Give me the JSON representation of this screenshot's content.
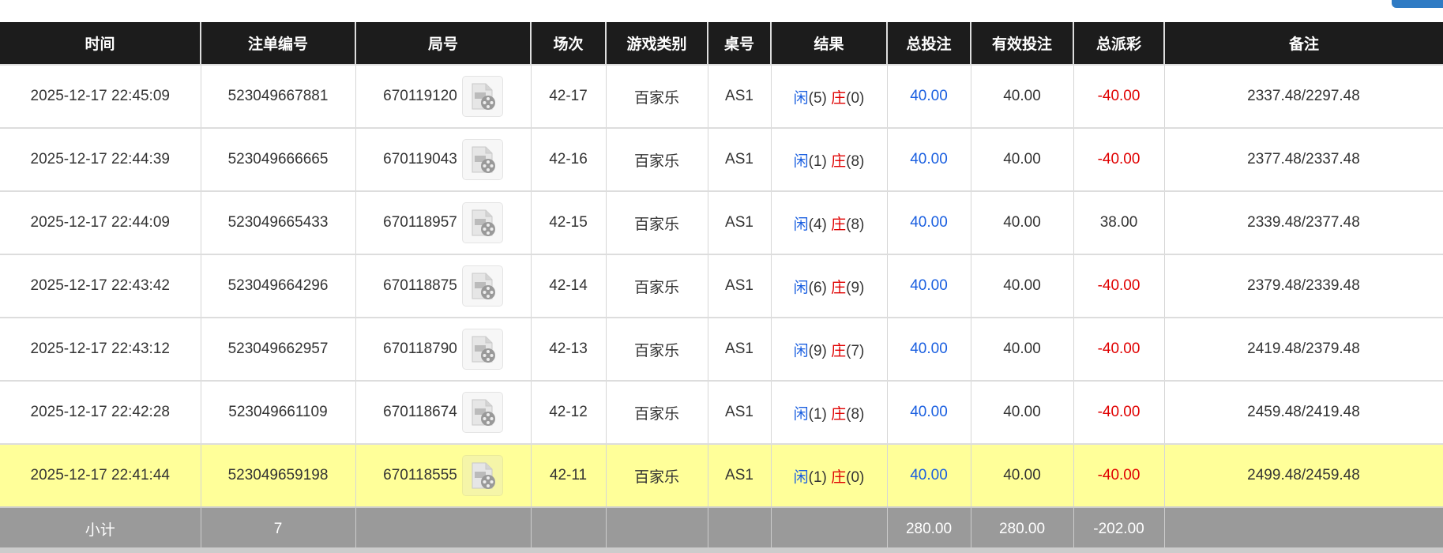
{
  "headers": [
    "时间",
    "注单编号",
    "局号",
    "场次",
    "游戏类别",
    "桌号",
    "结果",
    "总投注",
    "有效投注",
    "总派彩",
    "备注"
  ],
  "colors": {
    "header_bg": "#1c1c1c",
    "highlight_row": "#ffff99",
    "subtotal_bg": "#9a9a9a",
    "blue": "#1a5fe0",
    "red": "#e00000"
  },
  "rows": [
    {
      "time": "2025-12-17 22:45:09",
      "bet_id": "523049667881",
      "round": "670119120",
      "session": "42-17",
      "game": "百家乐",
      "table": "AS1",
      "player_label": "闲",
      "player": "(5)",
      "banker_label": "庄",
      "banker": "(0)",
      "total": "40.00",
      "valid": "40.00",
      "payout": "-40.00",
      "payout_neg": true,
      "note": "2337.48/2297.48"
    },
    {
      "time": "2025-12-17 22:44:39",
      "bet_id": "523049666665",
      "round": "670119043",
      "session": "42-16",
      "game": "百家乐",
      "table": "AS1",
      "player_label": "闲",
      "player": "(1)",
      "banker_label": "庄",
      "banker": "(8)",
      "total": "40.00",
      "valid": "40.00",
      "payout": "-40.00",
      "payout_neg": true,
      "note": "2377.48/2337.48"
    },
    {
      "time": "2025-12-17 22:44:09",
      "bet_id": "523049665433",
      "round": "670118957",
      "session": "42-15",
      "game": "百家乐",
      "table": "AS1",
      "player_label": "闲",
      "player": "(4)",
      "banker_label": "庄",
      "banker": "(8)",
      "total": "40.00",
      "valid": "40.00",
      "payout": "38.00",
      "payout_neg": false,
      "note": "2339.48/2377.48"
    },
    {
      "time": "2025-12-17 22:43:42",
      "bet_id": "523049664296",
      "round": "670118875",
      "session": "42-14",
      "game": "百家乐",
      "table": "AS1",
      "player_label": "闲",
      "player": "(6)",
      "banker_label": "庄",
      "banker": "(9)",
      "total": "40.00",
      "valid": "40.00",
      "payout": "-40.00",
      "payout_neg": true,
      "note": "2379.48/2339.48"
    },
    {
      "time": "2025-12-17 22:43:12",
      "bet_id": "523049662957",
      "round": "670118790",
      "session": "42-13",
      "game": "百家乐",
      "table": "AS1",
      "player_label": "闲",
      "player": "(9)",
      "banker_label": "庄",
      "banker": "(7)",
      "total": "40.00",
      "valid": "40.00",
      "payout": "-40.00",
      "payout_neg": true,
      "note": "2419.48/2379.48"
    },
    {
      "time": "2025-12-17 22:42:28",
      "bet_id": "523049661109",
      "round": "670118674",
      "session": "42-12",
      "game": "百家乐",
      "table": "AS1",
      "player_label": "闲",
      "player": "(1)",
      "banker_label": "庄",
      "banker": "(8)",
      "total": "40.00",
      "valid": "40.00",
      "payout": "-40.00",
      "payout_neg": true,
      "note": "2459.48/2419.48"
    },
    {
      "time": "2025-12-17 22:41:44",
      "bet_id": "523049659198",
      "round": "670118555",
      "session": "42-11",
      "game": "百家乐",
      "table": "AS1",
      "player_label": "闲",
      "player": "(1)",
      "banker_label": "庄",
      "banker": "(0)",
      "total": "40.00",
      "valid": "40.00",
      "payout": "-40.00",
      "payout_neg": true,
      "note": "2499.48/2459.48",
      "highlighted": true
    }
  ],
  "subtotal": {
    "label": "小计",
    "count": "7",
    "total": "280.00",
    "valid": "280.00",
    "payout": "-202.00"
  }
}
